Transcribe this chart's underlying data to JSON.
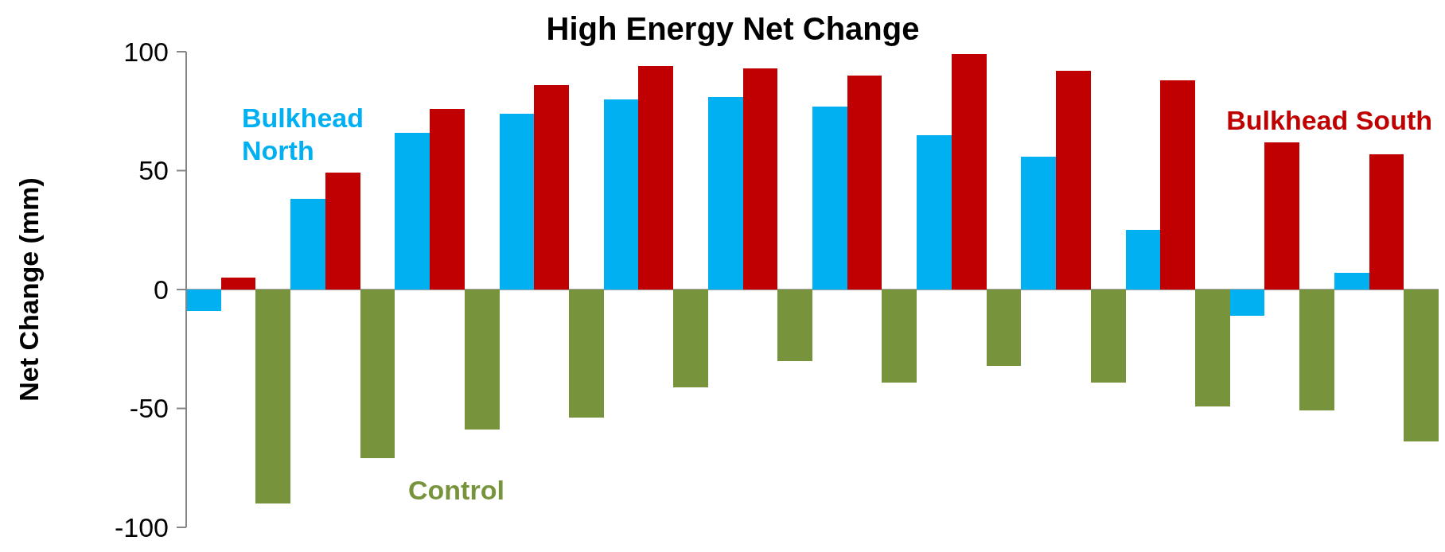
{
  "chart_data": {
    "type": "bar",
    "title": "High Energy Net Change",
    "ylabel": "Net Change (mm)",
    "categories": [
      null,
      null,
      null,
      null,
      null,
      null,
      null,
      null,
      null,
      null,
      null,
      null
    ],
    "series": [
      {
        "name": "Bulkhead North",
        "color": "#00b0f0",
        "values": [
          -9,
          38,
          66,
          74,
          80,
          81,
          77,
          65,
          56,
          25,
          -11,
          7
        ]
      },
      {
        "name": "Bulkhead South",
        "color": "#c00000",
        "values": [
          5,
          49,
          76,
          86,
          94,
          93,
          90,
          99,
          92,
          88,
          62,
          57
        ]
      },
      {
        "name": "Control",
        "color": "#77933c",
        "values": [
          -90,
          -71,
          -59,
          -54,
          -41,
          -30,
          -39,
          -32,
          -39,
          -49,
          -51,
          -64
        ]
      }
    ],
    "ylim": [
      -100,
      100
    ],
    "yticks": [
      -100,
      -50,
      0,
      50,
      100
    ]
  }
}
